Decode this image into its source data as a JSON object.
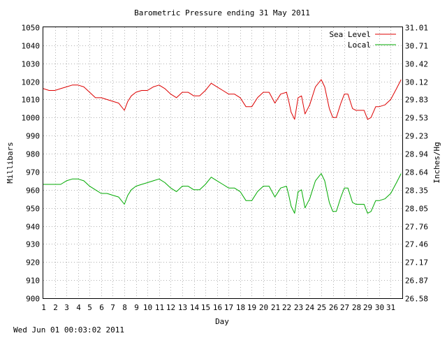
{
  "chart_data": {
    "type": "line",
    "title": "Barometric Pressure ending 31 May 2011",
    "xlabel": "Day",
    "ylabel": "Millibars",
    "ylabel_right": "Inches/Hg",
    "xlim": [
      1,
      32
    ],
    "ylim": [
      900,
      1050
    ],
    "x_ticks": [
      "1",
      "2",
      "3",
      "4",
      "5",
      "6",
      "7",
      "8",
      "9",
      "10",
      "11",
      "12",
      "13",
      "14",
      "15",
      "16",
      "17",
      "18",
      "19",
      "20",
      "21",
      "22",
      "23",
      "24",
      "25",
      "26",
      "27",
      "28",
      "29",
      "30",
      "31"
    ],
    "y_ticks": [
      "900",
      "910",
      "920",
      "930",
      "940",
      "950",
      "960",
      "970",
      "980",
      "990",
      "1000",
      "1010",
      "1020",
      "1030",
      "1040",
      "1050"
    ],
    "y_ticks_right": [
      "26.58",
      "26.87",
      "27.17",
      "27.46",
      "27.76",
      "28.05",
      "28.35",
      "28.64",
      "28.94",
      "29.23",
      "29.53",
      "29.83",
      "30.12",
      "30.42",
      "30.71",
      "31.01"
    ],
    "grid": true,
    "legend_position": "top-right",
    "series": [
      {
        "name": "Sea Level",
        "color": "#dd0000",
        "x": [
          1,
          1.5,
          2,
          2.5,
          3,
          3.5,
          4,
          4.5,
          5,
          5.5,
          6,
          6.5,
          7,
          7.5,
          8,
          8.3,
          8.6,
          9,
          9.5,
          10,
          10.5,
          11,
          11.5,
          12,
          12.5,
          13,
          13.5,
          14,
          14.5,
          15,
          15.5,
          16,
          16.5,
          17,
          17.5,
          18,
          18.5,
          19,
          19.5,
          20,
          20.5,
          21,
          21.5,
          22,
          22.2,
          22.4,
          22.7,
          23,
          23.3,
          23.6,
          24,
          24.5,
          25,
          25.3,
          25.7,
          26,
          26.3,
          26.7,
          27,
          27.3,
          27.7,
          28,
          28.3,
          28.7,
          29,
          29.3,
          29.7,
          30,
          30.5,
          31,
          31.5,
          31.9
        ],
        "y": [
          1016,
          1015,
          1015,
          1016,
          1017,
          1018,
          1018,
          1017,
          1014,
          1011,
          1011,
          1010,
          1009,
          1008,
          1004,
          1009,
          1012,
          1014,
          1015,
          1015,
          1017,
          1018,
          1016,
          1013,
          1011,
          1014,
          1014,
          1012,
          1012,
          1015,
          1019,
          1017,
          1015,
          1013,
          1013,
          1011,
          1006,
          1006,
          1011,
          1014,
          1014,
          1008,
          1013,
          1014,
          1009,
          1003,
          999,
          1011,
          1012,
          1002,
          1007,
          1017,
          1021,
          1017,
          1005,
          1000,
          1000,
          1008,
          1013,
          1013,
          1005,
          1004,
          1004,
          1004,
          999,
          1000,
          1006,
          1006,
          1007,
          1010,
          1016,
          1021
        ]
      },
      {
        "name": "Local",
        "color": "#00aa00",
        "x": [
          1,
          1.5,
          2,
          2.5,
          3,
          3.5,
          4,
          4.5,
          5,
          5.5,
          6,
          6.5,
          7,
          7.5,
          8,
          8.3,
          8.6,
          9,
          9.5,
          10,
          10.5,
          11,
          11.5,
          12,
          12.5,
          13,
          13.5,
          14,
          14.5,
          15,
          15.5,
          16,
          16.5,
          17,
          17.5,
          18,
          18.5,
          19,
          19.5,
          20,
          20.5,
          21,
          21.5,
          22,
          22.2,
          22.4,
          22.7,
          23,
          23.3,
          23.6,
          24,
          24.5,
          25,
          25.3,
          25.7,
          26,
          26.3,
          26.7,
          27,
          27.3,
          27.7,
          28,
          28.3,
          28.7,
          29,
          29.3,
          29.7,
          30,
          30.5,
          31,
          31.5,
          31.9
        ],
        "y": [
          963,
          963,
          963,
          963,
          965,
          966,
          966,
          965,
          962,
          960,
          958,
          958,
          957,
          956,
          952,
          957,
          960,
          962,
          963,
          964,
          965,
          966,
          964,
          961,
          959,
          962,
          962,
          960,
          960,
          963,
          967,
          965,
          963,
          961,
          961,
          959,
          954,
          954,
          959,
          962,
          962,
          956,
          961,
          962,
          957,
          951,
          947,
          959,
          960,
          950,
          955,
          965,
          969,
          965,
          953,
          948,
          948,
          956,
          961,
          961,
          953,
          952,
          952,
          952,
          947,
          948,
          954,
          954,
          955,
          958,
          964,
          969
        ]
      }
    ]
  },
  "footer": {
    "timestamp": "Wed Jun 01 00:03:02 2011"
  }
}
